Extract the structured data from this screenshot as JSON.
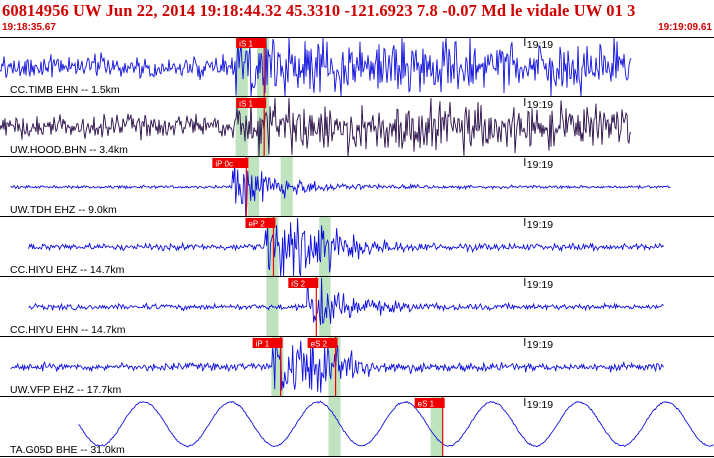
{
  "header": {
    "title": "60814956 UW Jun 22, 2014 19:18:44.32    45.3310 -121.6923  7.8 -0.07 Md le vidale UW 01   3",
    "start_time": "19:18:35.67",
    "end_time": "19:19:09.61"
  },
  "time_tick_label": "19:19",
  "colors": {
    "header_text": "#d00000",
    "trace_blue": "#1111dd",
    "trace_purple": "#2a0f4a",
    "pick_red": "#ee0000",
    "window_green": "#bfe3bf",
    "separator": "#000000"
  },
  "traces": [
    {
      "label": "CC.TIMB EHN -- 1.5km",
      "color": "blue",
      "picks": [
        {
          "label": "iS 1",
          "t": 0.37
        }
      ],
      "windows": [
        [
          0.33,
          0.347
        ],
        [
          0.36,
          0.377
        ]
      ]
    },
    {
      "label": "UW.HOOD.BHN -- 3.4km",
      "color": "purple",
      "picks": [
        {
          "label": "iS 1",
          "t": 0.37
        }
      ],
      "windows": [
        [
          0.33,
          0.347
        ],
        [
          0.36,
          0.377
        ]
      ]
    },
    {
      "label": "UW.TDH EHZ -- 9.0km",
      "color": "blue",
      "picks": [
        {
          "label": "iP 0c",
          "t": 0.345
        }
      ],
      "windows": [
        [
          0.347,
          0.363
        ],
        [
          0.393,
          0.41
        ]
      ]
    },
    {
      "label": "CC.HIYU EHZ -- 14.7km",
      "color": "blue",
      "picks": [
        {
          "label": "eP 2",
          "t": 0.383
        }
      ],
      "windows": [
        [
          0.373,
          0.39
        ],
        [
          0.447,
          0.463
        ]
      ]
    },
    {
      "label": "CC.HIYU EHN -- 14.7km",
      "color": "blue",
      "picks": [
        {
          "label": "iS 2",
          "t": 0.443
        }
      ],
      "windows": [
        [
          0.373,
          0.39
        ],
        [
          0.447,
          0.463
        ]
      ]
    },
    {
      "label": "UW.VFP EHZ -- 17.7km",
      "color": "blue",
      "picks": [
        {
          "label": "iP 1",
          "t": 0.393
        },
        {
          "label": "eS 2",
          "t": 0.47
        }
      ],
      "windows": [
        [
          0.38,
          0.397
        ],
        [
          0.46,
          0.477
        ]
      ]
    },
    {
      "label": "TA.G05D BHE -- 31.0km",
      "color": "blue",
      "picks": [
        {
          "label": "eS 1",
          "t": 0.62
        }
      ],
      "windows": [
        [
          0.46,
          0.477
        ],
        [
          0.603,
          0.62
        ]
      ]
    }
  ]
}
